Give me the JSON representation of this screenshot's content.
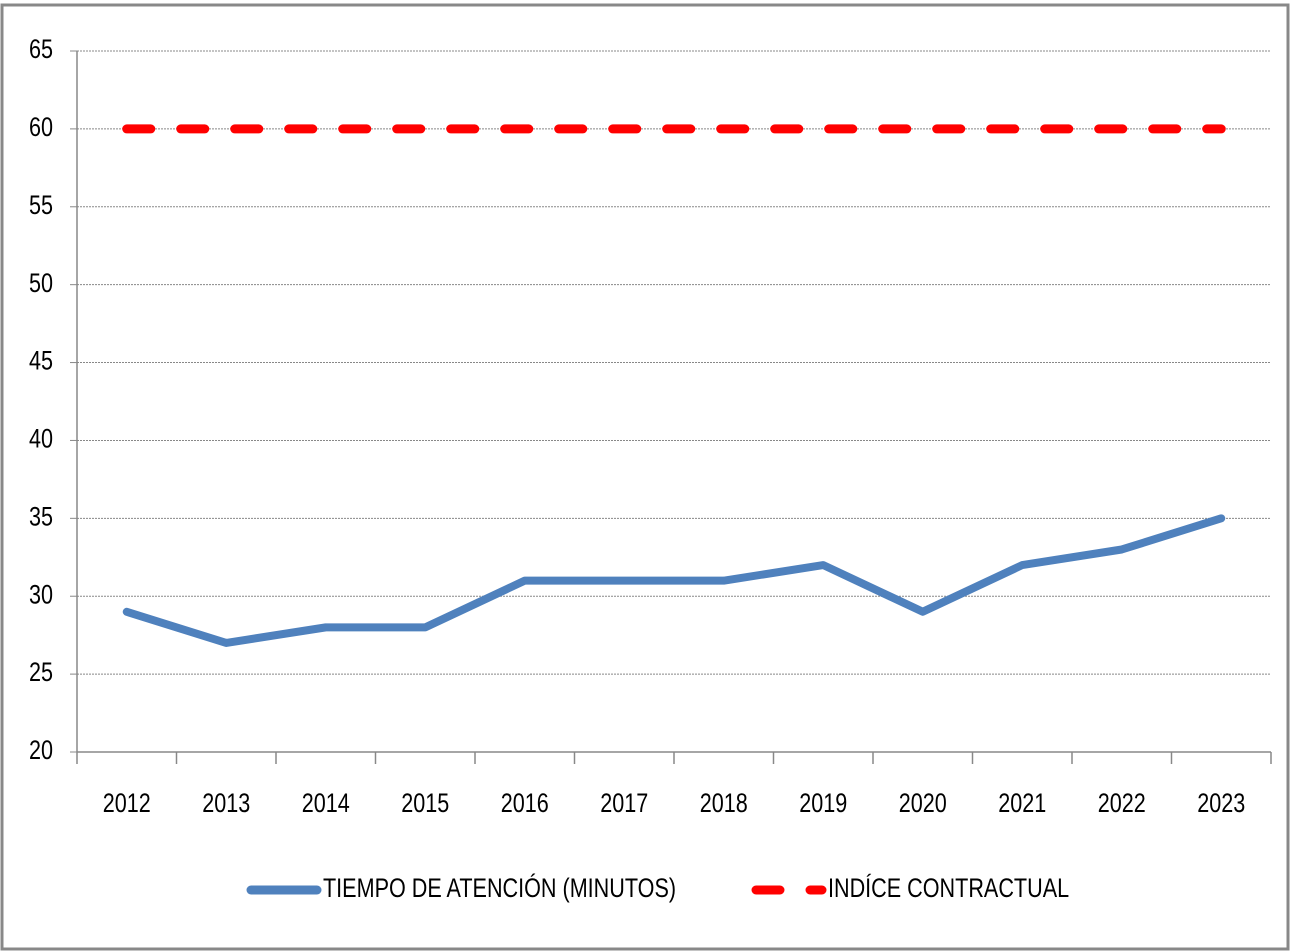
{
  "chart_data": {
    "type": "line",
    "categories": [
      "2012",
      "2013",
      "2014",
      "2015",
      "2016",
      "2017",
      "2018",
      "2019",
      "2020",
      "2021",
      "2022",
      "2023"
    ],
    "series": [
      {
        "name": "TIEMPO DE ATENCIÓN (MINUTOS)",
        "color": "#4f81bd",
        "line_style": "solid",
        "values": [
          29,
          27,
          28,
          28,
          31,
          31,
          31,
          32,
          29,
          32,
          33,
          35
        ]
      },
      {
        "name": "INDÍCE CONTRACTUAL",
        "color": "#ff0000",
        "line_style": "dashed",
        "values": [
          60,
          60,
          60,
          60,
          60,
          60,
          60,
          60,
          60,
          60,
          60,
          60
        ]
      }
    ],
    "ylim": [
      20,
      65
    ],
    "yticks": [
      20,
      25,
      30,
      35,
      40,
      45,
      50,
      55,
      60,
      65
    ],
    "grid": true,
    "legend": "bottom"
  }
}
